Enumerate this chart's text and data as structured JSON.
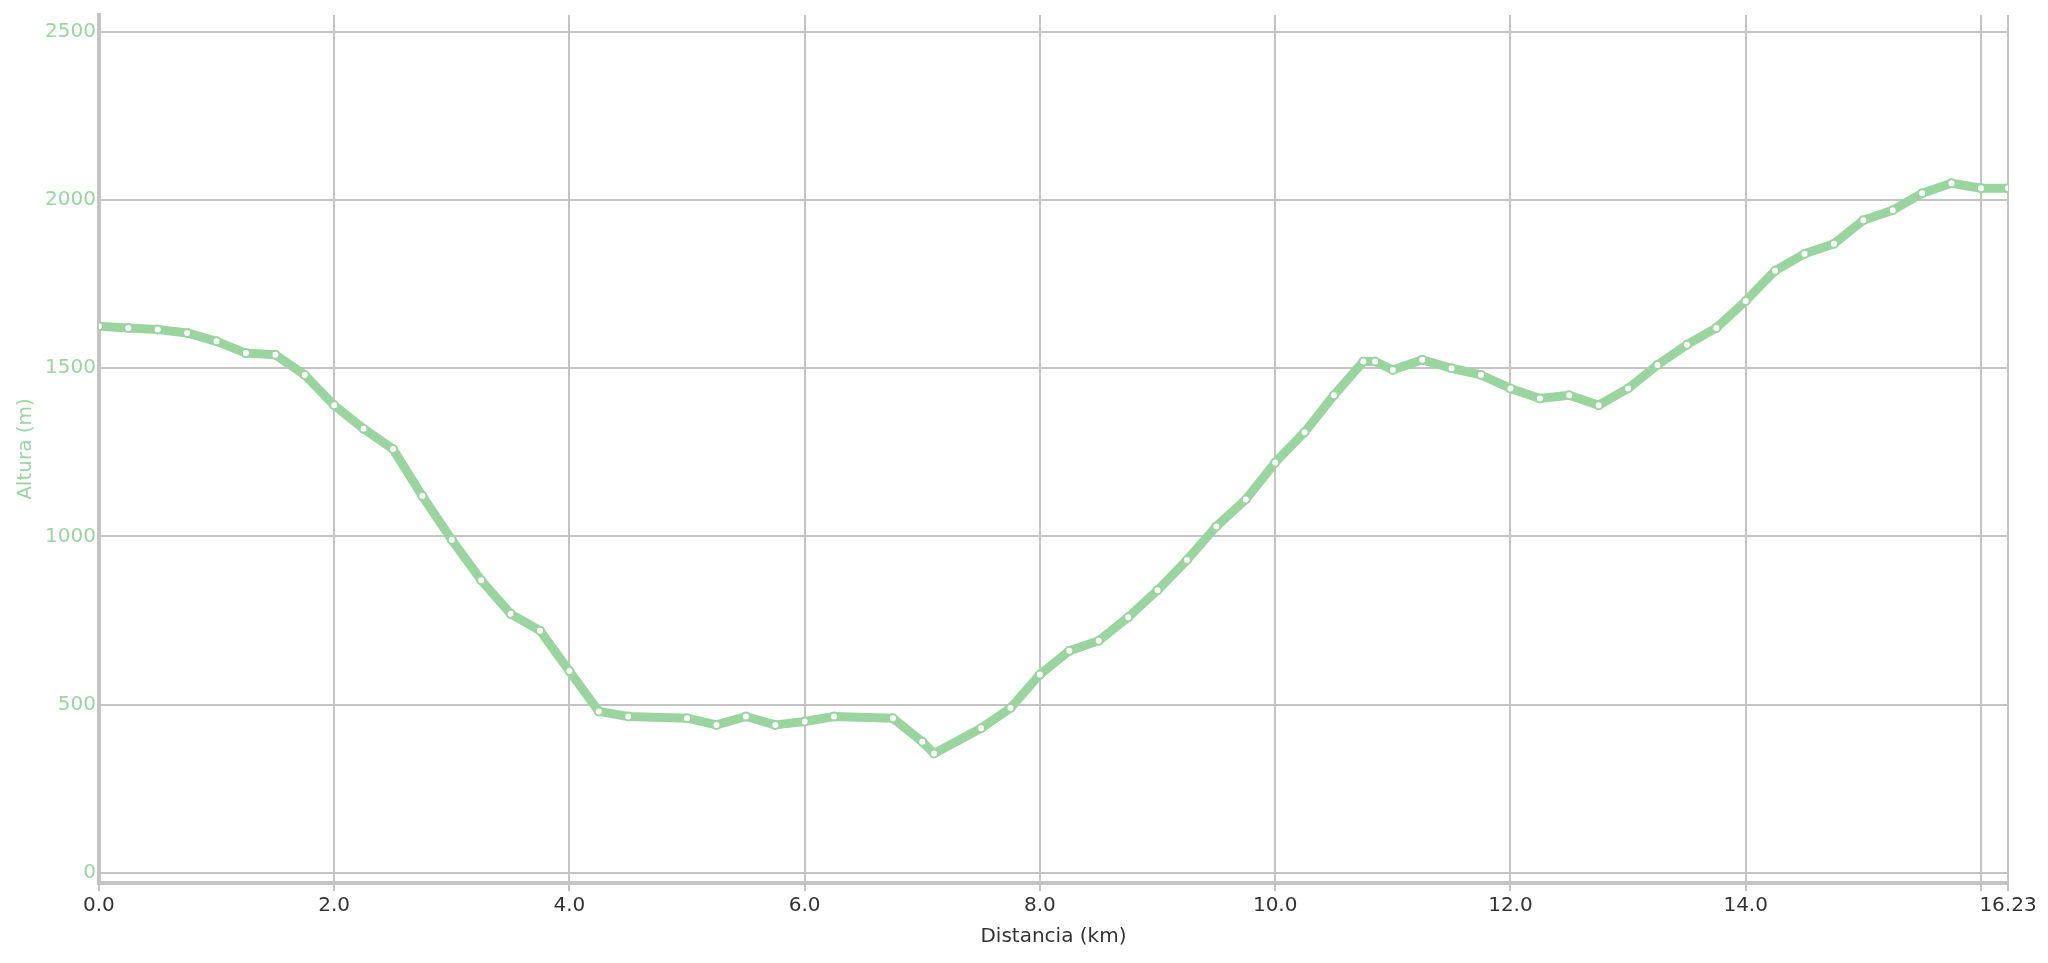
{
  "chart_data": {
    "type": "line",
    "xlabel": "Distancia (km)",
    "ylabel": "Altura (m)",
    "marker": "circle",
    "grid": true,
    "legend": false,
    "xlim": [
      0,
      16.23
    ],
    "xticks": [
      {
        "value": 0,
        "label": "0.0"
      },
      {
        "value": 2,
        "label": "2.0"
      },
      {
        "value": 4,
        "label": "4.0"
      },
      {
        "value": 6,
        "label": "6.0"
      },
      {
        "value": 8,
        "label": "8.0"
      },
      {
        "value": 10,
        "label": "10.0"
      },
      {
        "value": 12,
        "label": "12.0"
      },
      {
        "value": 14,
        "label": "14.0"
      },
      {
        "value": 16,
        "label": null
      },
      {
        "value": 16.23,
        "label": "16.23"
      }
    ],
    "ylim": [
      -30,
      2550
    ],
    "yticks": [
      0,
      500,
      1000,
      1500,
      2000,
      2500
    ],
    "series": [
      {
        "color": "#9ad5a0",
        "x": [
          0,
          0.25,
          0.5,
          0.75,
          1,
          1.25,
          1.5,
          1.75,
          2,
          2.25,
          2.5,
          2.75,
          3,
          3.25,
          3.5,
          3.75,
          4,
          4.25,
          4.5,
          5,
          5.25,
          5.5,
          5.75,
          6,
          6.25,
          6.75,
          7,
          7.1,
          7.5,
          7.75,
          8,
          8.25,
          8.5,
          8.75,
          9,
          9.25,
          9.5,
          9.75,
          10,
          10.25,
          10.5,
          10.75,
          10.85,
          11,
          11.25,
          11.5,
          11.75,
          12,
          12.25,
          12.5,
          12.75,
          13,
          13.25,
          13.5,
          13.75,
          14,
          14.25,
          14.5,
          14.75,
          15,
          15.25,
          15.5,
          15.75,
          16,
          16.23
        ],
        "values": [
          1625,
          1620,
          1615,
          1605,
          1580,
          1545,
          1540,
          1480,
          1390,
          1320,
          1260,
          1120,
          990,
          870,
          770,
          720,
          600,
          480,
          465,
          460,
          440,
          465,
          440,
          450,
          465,
          460,
          390,
          355,
          430,
          490,
          590,
          660,
          690,
          760,
          840,
          930,
          1030,
          1110,
          1220,
          1310,
          1420,
          1520,
          1520,
          1495,
          1525,
          1500,
          1480,
          1440,
          1410,
          1420,
          1390,
          1440,
          1510,
          1570,
          1620,
          1700,
          1790,
          1840,
          1870,
          1940,
          1970,
          2020,
          2050,
          2035,
          2035
        ]
      }
    ]
  }
}
